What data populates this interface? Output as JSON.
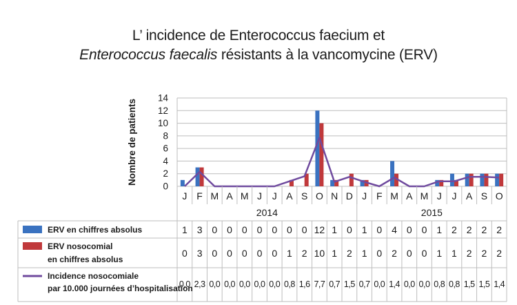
{
  "title": {
    "line1": "L’ incidence de Enterococcus faecium et",
    "line2_italic": "Enterococcus faecalis",
    "line2_rest": " résistants à la vancomycine (ERV)"
  },
  "chart_data": {
    "type": "bar",
    "ylabel": "Nombre de patients",
    "ylim": [
      0,
      14
    ],
    "yticks": [
      0,
      2,
      4,
      6,
      8,
      10,
      12,
      14
    ],
    "grid": true,
    "categories": [
      "J",
      "F",
      "M",
      "A",
      "M",
      "J",
      "J",
      "A",
      "S",
      "O",
      "N",
      "D",
      "J",
      "F",
      "M",
      "A",
      "M",
      "J",
      "J",
      "A",
      "S",
      "O"
    ],
    "years": [
      {
        "label": "2014",
        "start": 0,
        "end": 11
      },
      {
        "label": "2015",
        "start": 12,
        "end": 21
      }
    ],
    "series": [
      {
        "name": "ERV en chiffres absolus",
        "type": "bar",
        "color": "#3a72c0",
        "values": [
          1,
          3,
          0,
          0,
          0,
          0,
          0,
          0,
          0,
          12,
          1,
          0,
          1,
          0,
          4,
          0,
          0,
          1,
          2,
          2,
          2,
          2
        ],
        "labels": [
          "1",
          "3",
          "0",
          "0",
          "0",
          "0",
          "0",
          "0",
          "0",
          "12",
          "1",
          "0",
          "1",
          "0",
          "4",
          "0",
          "0",
          "1",
          "2",
          "2",
          "2",
          "2"
        ]
      },
      {
        "name": "ERV nosocomial en chiffres absolus",
        "name_lines": [
          "ERV nosocomial",
          "en chiffres absolus"
        ],
        "type": "bar",
        "color": "#c0393b",
        "values": [
          0,
          3,
          0,
          0,
          0,
          0,
          0,
          1,
          2,
          10,
          1,
          2,
          1,
          0,
          2,
          0,
          0,
          1,
          1,
          2,
          2,
          2
        ],
        "labels": [
          "0",
          "3",
          "0",
          "0",
          "0",
          "0",
          "0",
          "1",
          "2",
          "10",
          "1",
          "2",
          "1",
          "0",
          "2",
          "0",
          "0",
          "1",
          "1",
          "2",
          "2",
          "2"
        ]
      },
      {
        "name": "Incidence nosocomiale par 10.000 journées d’hospitalisation",
        "name_lines": [
          "Incidence nosocomiale",
          "par 10.000 journées d’hospitalisation"
        ],
        "type": "line",
        "color": "#6f4a9e",
        "values": [
          0,
          2.3,
          0,
          0,
          0,
          0,
          0,
          0.8,
          1.6,
          7.7,
          0.7,
          1.5,
          0.7,
          0,
          1.4,
          0,
          0,
          0.8,
          0.8,
          1.5,
          1.5,
          1.4
        ],
        "labels": [
          "0,0",
          "2,3",
          "0,0",
          "0,0",
          "0,0",
          "0,0",
          "0,0",
          "0,8",
          "1,6",
          "7,7",
          "0,7",
          "1,5",
          "0,7",
          "0,0",
          "1,4",
          "0,0",
          "0,0",
          "0,8",
          "0,8",
          "1,5",
          "1,5",
          "1,4"
        ]
      }
    ]
  }
}
